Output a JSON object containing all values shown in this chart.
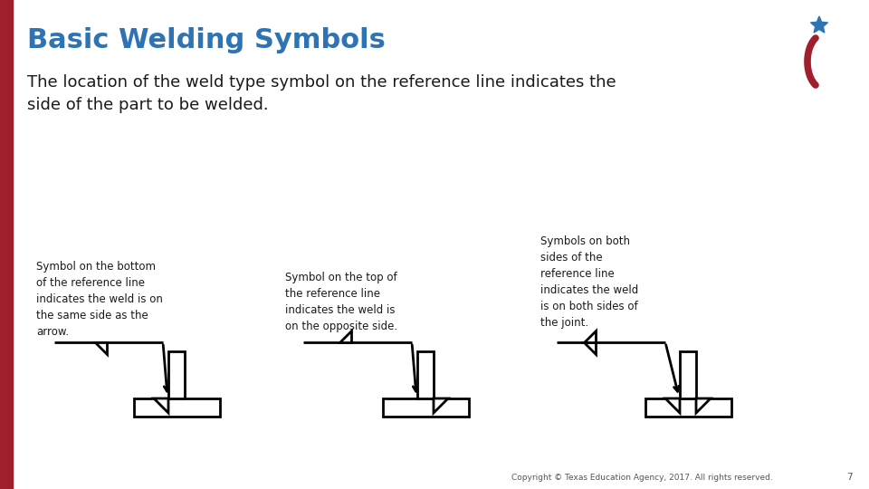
{
  "title": "Basic Welding Symbols",
  "title_color": "#2E74B5",
  "title_fontsize": 22,
  "subtitle": "The location of the weld type symbol on the reference line indicates the\nside of the part to be welded.",
  "subtitle_fontsize": 13,
  "bg_color": "#FFFFFF",
  "left_bar_color": "#A01F2D",
  "logo_star_color": "#2E74B5",
  "logo_arc_color": "#A01F2D",
  "diagram_color": "#000000",
  "text_color": "#1a1a1a",
  "caption1": "Symbol on the bottom\nof the reference line\nindicates the weld is on\nthe same side as the\narrow.",
  "caption2": "Symbol on the top of\nthe reference line\nindicates the weld is\non the opposite side.",
  "caption3": "Symbols on both\nsides of the\nreference line\nindicates the weld\nis on both sides of\nthe joint.",
  "footer": "Copyright © Texas Education Agency, 2017. All rights reserved.",
  "page_number": "7",
  "caption_fontsize": 8.5,
  "footer_fontsize": 6.5
}
